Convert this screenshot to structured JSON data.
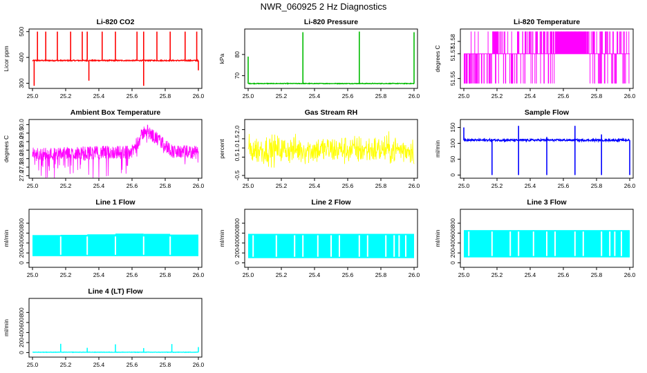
{
  "title": "NWR_060925  2 Hz Diagnostics",
  "chart_data": [
    {
      "type": "line",
      "title": "Li-820 CO2",
      "ylabel": "Licor ppm",
      "color": "#ff0000",
      "xlim": [
        25.0,
        26.0
      ],
      "ylim": [
        280,
        510
      ],
      "xticks": [
        "25.0",
        "25.2",
        "25.4",
        "25.6",
        "25.8",
        "26.0"
      ],
      "yticks": [
        300,
        400,
        500
      ],
      "baseline": 388,
      "noise": 2,
      "noise_mode": "uniform",
      "spikes": [
        [
          25.03,
          500
        ],
        [
          25.08,
          500
        ],
        [
          25.15,
          500
        ],
        [
          25.23,
          500
        ],
        [
          25.3,
          500
        ],
        [
          25.33,
          500
        ],
        [
          25.42,
          500
        ],
        [
          25.5,
          500
        ],
        [
          25.63,
          500
        ],
        [
          25.67,
          500
        ],
        [
          25.75,
          500
        ],
        [
          25.83,
          500
        ],
        [
          25.92,
          500
        ],
        [
          25.99,
          500
        ],
        [
          25.01,
          290
        ],
        [
          25.34,
          310
        ],
        [
          25.67,
          290
        ],
        [
          26.0,
          350
        ]
      ]
    },
    {
      "type": "line",
      "title": "Li-820 Pressure",
      "ylabel": "kPa",
      "color": "#00bb00",
      "xlim": [
        25.0,
        26.0
      ],
      "ylim": [
        64,
        92
      ],
      "xticks": [
        "25.0",
        "25.2",
        "25.4",
        "25.6",
        "25.8",
        "26.0"
      ],
      "yticks": [
        70,
        80
      ],
      "baseline": 66.3,
      "noise": 0.15,
      "noise_mode": "uniform",
      "spikes": [
        [
          25.0,
          79
        ],
        [
          25.33,
          90.5
        ],
        [
          25.67,
          90.8
        ],
        [
          26.0,
          90.5
        ]
      ]
    },
    {
      "type": "line",
      "title": "Li-820 Temperature",
      "ylabel": "degrees C",
      "color": "#ff00ff",
      "xlim": [
        25.0,
        26.0
      ],
      "ylim": [
        51.542,
        51.59
      ],
      "xticks": [
        "25.0",
        "25.2",
        "25.4",
        "25.6",
        "25.8",
        "26.0"
      ],
      "yticks": [
        51.55,
        51.57,
        51.58
      ],
      "ytick_labels": [
        "51.55",
        "51.57",
        "51.58"
      ],
      "mode": "levels",
      "levels": [
        51.546,
        51.57,
        51.588
      ]
    },
    {
      "type": "line",
      "title": "Ambient Box Temperature",
      "ylabel": "degrees C",
      "color": "#ff00ff",
      "xlim": [
        25.0,
        26.0
      ],
      "ylim": [
        26.85,
        30.3
      ],
      "xticks": [
        "25.0",
        "25.2",
        "25.4",
        "25.6",
        "25.8",
        "26.0"
      ],
      "yticks": [
        27.0,
        27.5,
        28.0,
        28.5,
        29.0,
        29.5,
        30.0
      ],
      "ytick_labels": [
        "27.0",
        "27.5",
        "28.0",
        "28.5",
        "29.0",
        "29.5",
        "30.0"
      ],
      "mode": "ambient"
    },
    {
      "type": "line",
      "title": "Gas Stream RH",
      "ylabel": "percent",
      "color": "#ffff00",
      "xlim": [
        25.0,
        26.0
      ],
      "ylim": [
        -0.65,
        2.55
      ],
      "xticks": [
        "25.0",
        "25.2",
        "25.4",
        "25.6",
        "25.8",
        "26.0"
      ],
      "yticks": [
        -0.5,
        0.5,
        1.0,
        1.5,
        2.0
      ],
      "ytick_labels": [
        "-0.5",
        "0.5",
        "1.0",
        "1.5",
        "2.0"
      ],
      "baseline": 0.9,
      "noise": 1.4,
      "noise_mode": "gauss"
    },
    {
      "type": "line",
      "title": "Sample Flow",
      "ylabel": "ml/min",
      "color": "#0000ff",
      "xlim": [
        25.0,
        26.0
      ],
      "ylim": [
        -10,
        175
      ],
      "xticks": [
        "25.0",
        "25.2",
        "25.4",
        "25.6",
        "25.8",
        "26.0"
      ],
      "yticks": [
        0,
        50,
        100,
        150
      ],
      "baseline": 110,
      "noise": 3,
      "noise_mode": "uniform",
      "spikes": [
        [
          25.0,
          150
        ],
        [
          25.33,
          155
        ],
        [
          25.5,
          120
        ],
        [
          25.67,
          155
        ],
        [
          25.83,
          128
        ],
        [
          26.0,
          110
        ],
        [
          25.17,
          0
        ],
        [
          25.33,
          0
        ],
        [
          25.5,
          0
        ],
        [
          25.67,
          0
        ],
        [
          25.83,
          0
        ],
        [
          26.0,
          0
        ]
      ]
    },
    {
      "type": "line",
      "title": "Line 1 Flow",
      "ylabel": "ml/min",
      "color": "#00ffff",
      "xlim": [
        25.0,
        26.0
      ],
      "ylim": [
        -90,
        1080
      ],
      "xticks": [
        "25.0",
        "25.2",
        "25.4",
        "25.6",
        "25.8",
        "26.0"
      ],
      "yticks": [
        0,
        200,
        400,
        600,
        800
      ],
      "mode": "band",
      "band": [
        [
          25.0,
          25.17,
          135,
          560
        ],
        [
          25.17,
          25.33,
          135,
          565
        ],
        [
          25.33,
          25.5,
          135,
          575
        ],
        [
          25.5,
          25.67,
          135,
          590
        ],
        [
          25.67,
          25.83,
          135,
          585
        ],
        [
          25.83,
          26.0,
          135,
          570
        ]
      ],
      "gaps": [
        25.17,
        25.33,
        25.5,
        25.67,
        25.83
      ]
    },
    {
      "type": "line",
      "title": "Line 2 Flow",
      "ylabel": "ml/min",
      "color": "#00ffff",
      "xlim": [
        25.0,
        26.0
      ],
      "ylim": [
        -90,
        1080
      ],
      "xticks": [
        "25.0",
        "25.2",
        "25.4",
        "25.6",
        "25.8",
        "26.0"
      ],
      "yticks": [
        0,
        200,
        400,
        600,
        800
      ],
      "mode": "band",
      "band": [
        [
          25.0,
          26.0,
          95,
          585
        ]
      ],
      "gaps": [
        25.03,
        25.17,
        25.28,
        25.33,
        25.42,
        25.5,
        25.55,
        25.67,
        25.72,
        25.83,
        25.88,
        25.91,
        25.95
      ]
    },
    {
      "type": "line",
      "title": "Line 3 Flow",
      "ylabel": "ml/min",
      "color": "#00ffff",
      "xlim": [
        25.0,
        26.0
      ],
      "ylim": [
        -90,
        1080
      ],
      "xticks": [
        "25.0",
        "25.2",
        "25.4",
        "25.6",
        "25.8",
        "26.0"
      ],
      "yticks": [
        0,
        200,
        400,
        600,
        800
      ],
      "mode": "band",
      "band": [
        [
          25.0,
          26.0,
          110,
          660
        ]
      ],
      "gaps": [
        25.03,
        25.17,
        25.28,
        25.33,
        25.42,
        25.5,
        25.55,
        25.67,
        25.72,
        25.83,
        25.88,
        25.91,
        25.95
      ]
    },
    {
      "type": "line",
      "title": "Line 4 (LT) Flow",
      "ylabel": "ml/min",
      "color": "#00ffff",
      "xlim": [
        25.0,
        26.0
      ],
      "ylim": [
        -90,
        1080
      ],
      "xticks": [
        "25.0",
        "25.2",
        "25.4",
        "25.6",
        "25.8",
        "26.0"
      ],
      "yticks": [
        0,
        200,
        400,
        600,
        800
      ],
      "baseline": 8,
      "noise": 4,
      "noise_mode": "uniform",
      "spikes": [
        [
          25.17,
          175
        ],
        [
          25.33,
          95
        ],
        [
          25.5,
          165
        ],
        [
          25.67,
          90
        ],
        [
          25.84,
          170
        ],
        [
          26.0,
          110
        ]
      ]
    }
  ]
}
